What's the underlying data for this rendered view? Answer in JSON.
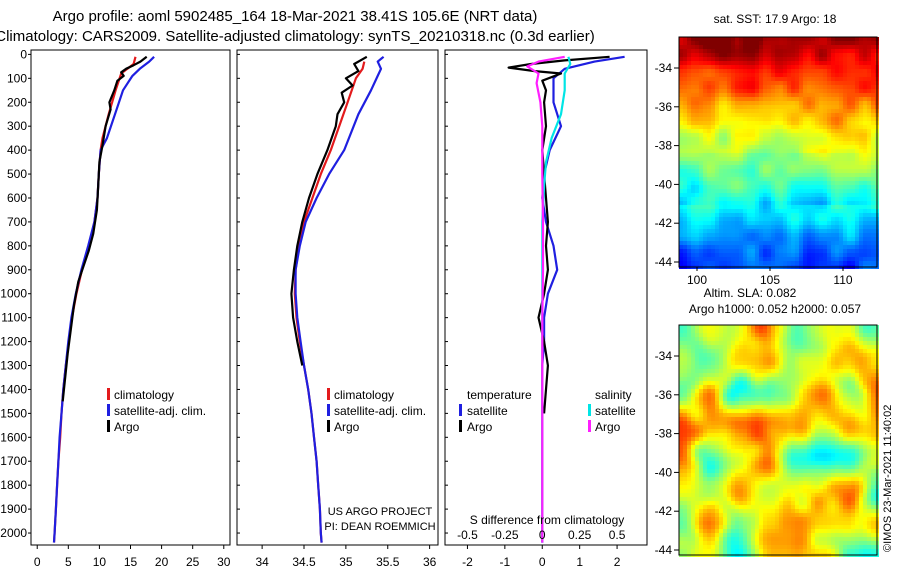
{
  "header": {
    "line1": "Argo profile: aoml 5902485_164 18-Mar-2021 38.41S 105.6E (NRT data)",
    "line2": "Climatology: CARS2009. Satellite-adjusted climatology: synTS_20210318.nc (0.3d earlier)"
  },
  "colors": {
    "climatology": "#e31a1c",
    "satellite": "#1f1fe0",
    "argo": "#000000",
    "sat_salinity": "#00e5e5",
    "argo_salinity": "#ff1fff"
  },
  "chart_data": [
    {
      "type": "line",
      "name": "temperature-profile",
      "xlim": [
        -1,
        31
      ],
      "ylim": [
        2050,
        -10
      ],
      "xticks": [
        0,
        5,
        10,
        15,
        20,
        25,
        30
      ],
      "yticks": [
        0,
        100,
        200,
        300,
        400,
        500,
        600,
        700,
        800,
        900,
        1000,
        1100,
        1200,
        1300,
        1400,
        1500,
        1600,
        1700,
        1800,
        1900,
        2000
      ],
      "legend": [
        "climatology",
        "satellite-adj. clim.",
        "Argo"
      ],
      "series": [
        {
          "name": "climatology",
          "color": "#e31a1c",
          "points": [
            [
              15.8,
              10
            ],
            [
              15.5,
              40
            ],
            [
              13.5,
              80
            ],
            [
              12.6,
              150
            ],
            [
              11.5,
              250
            ],
            [
              10.5,
              350
            ],
            [
              10.2,
              400
            ],
            [
              9.9,
              500
            ],
            [
              9.7,
              600
            ],
            [
              9.2,
              700
            ],
            [
              8.3,
              800
            ],
            [
              7.2,
              900
            ],
            [
              6.3,
              1000
            ],
            [
              5.6,
              1100
            ],
            [
              5.1,
              1200
            ],
            [
              4.6,
              1300
            ],
            [
              4.2,
              1400
            ],
            [
              3.9,
              1500
            ],
            [
              3.7,
              1600
            ],
            [
              3.4,
              1700
            ],
            [
              3.2,
              1800
            ],
            [
              3.0,
              1900
            ],
            [
              2.8,
              2000
            ],
            [
              2.7,
              2040
            ]
          ]
        },
        {
          "name": "satellite-adj. clim.",
          "color": "#1f1fe0",
          "points": [
            [
              18.8,
              10
            ],
            [
              18.0,
              30
            ],
            [
              16.5,
              60
            ],
            [
              15.3,
              90
            ],
            [
              13.8,
              150
            ],
            [
              12.5,
              250
            ],
            [
              11.2,
              350
            ],
            [
              10.2,
              400
            ],
            [
              9.9,
              500
            ],
            [
              9.7,
              600
            ],
            [
              9.2,
              700
            ],
            [
              8.2,
              800
            ],
            [
              7.1,
              900
            ],
            [
              6.2,
              1000
            ],
            [
              5.5,
              1100
            ],
            [
              5.0,
              1200
            ],
            [
              4.6,
              1300
            ],
            [
              4.2,
              1400
            ],
            [
              3.9,
              1500
            ],
            [
              3.6,
              1600
            ],
            [
              3.4,
              1700
            ],
            [
              3.2,
              1800
            ],
            [
              3.0,
              1900
            ],
            [
              2.8,
              2000
            ],
            [
              2.7,
              2040
            ]
          ]
        },
        {
          "name": "Argo",
          "color": "#000000",
          "points": [
            [
              17.6,
              10
            ],
            [
              16.6,
              30
            ],
            [
              15.5,
              45
            ],
            [
              14.3,
              60
            ],
            [
              13.5,
              75
            ],
            [
              13.9,
              90
            ],
            [
              12.9,
              110
            ],
            [
              12.4,
              150
            ],
            [
              11.6,
              200
            ],
            [
              11.8,
              230
            ],
            [
              11.0,
              300
            ],
            [
              10.5,
              380
            ],
            [
              10.0,
              450
            ],
            [
              9.8,
              550
            ],
            [
              9.6,
              650
            ],
            [
              9.0,
              750
            ],
            [
              8.3,
              820
            ],
            [
              7.5,
              880
            ],
            [
              6.6,
              950
            ],
            [
              5.9,
              1050
            ],
            [
              5.4,
              1150
            ],
            [
              4.9,
              1250
            ],
            [
              4.5,
              1350
            ],
            [
              4.1,
              1450
            ]
          ]
        }
      ]
    },
    {
      "type": "line",
      "name": "salinity-profile",
      "xlim": [
        33.7,
        36.1
      ],
      "ylim": [
        2050,
        -10
      ],
      "xticks": [
        34,
        34.5,
        35,
        35.5,
        36
      ],
      "legend": [
        "climatology",
        "satellite-adj. clim.",
        "Argo"
      ],
      "series": [
        {
          "name": "climatology",
          "color": "#e31a1c",
          "points": [
            [
              35.22,
              30
            ],
            [
              35.2,
              60
            ],
            [
              35.12,
              100
            ],
            [
              35.02,
              200
            ],
            [
              34.92,
              300
            ],
            [
              34.82,
              400
            ],
            [
              34.7,
              500
            ],
            [
              34.6,
              600
            ],
            [
              34.5,
              700
            ],
            [
              34.44,
              800
            ],
            [
              34.4,
              900
            ],
            [
              34.39,
              1000
            ],
            [
              34.41,
              1100
            ],
            [
              34.45,
              1200
            ],
            [
              34.5,
              1300
            ],
            [
              34.55,
              1400
            ],
            [
              34.59,
              1500
            ],
            [
              34.62,
              1600
            ],
            [
              34.65,
              1700
            ],
            [
              34.67,
              1800
            ],
            [
              34.69,
              1900
            ],
            [
              34.7,
              2000
            ],
            [
              34.71,
              2040
            ]
          ]
        },
        {
          "name": "satellite-adj. clim.",
          "color": "#1f1fe0",
          "points": [
            [
              35.45,
              10
            ],
            [
              35.38,
              30
            ],
            [
              35.42,
              60
            ],
            [
              35.38,
              90
            ],
            [
              35.3,
              150
            ],
            [
              35.15,
              250
            ],
            [
              34.98,
              400
            ],
            [
              34.8,
              500
            ],
            [
              34.65,
              600
            ],
            [
              34.52,
              700
            ],
            [
              34.45,
              800
            ],
            [
              34.4,
              900
            ],
            [
              34.4,
              1000
            ],
            [
              34.42,
              1100
            ],
            [
              34.46,
              1200
            ],
            [
              34.5,
              1300
            ],
            [
              34.55,
              1400
            ],
            [
              34.59,
              1500
            ],
            [
              34.62,
              1600
            ],
            [
              34.65,
              1700
            ],
            [
              34.67,
              1800
            ],
            [
              34.69,
              1900
            ],
            [
              34.7,
              2000
            ],
            [
              34.71,
              2040
            ]
          ]
        },
        {
          "name": "Argo",
          "color": "#000000",
          "points": [
            [
              35.25,
              10
            ],
            [
              35.1,
              40
            ],
            [
              35.15,
              70
            ],
            [
              35.0,
              100
            ],
            [
              35.08,
              130
            ],
            [
              34.95,
              160
            ],
            [
              34.98,
              200
            ],
            [
              34.9,
              250
            ],
            [
              34.88,
              300
            ],
            [
              34.78,
              400
            ],
            [
              34.66,
              500
            ],
            [
              34.56,
              600
            ],
            [
              34.48,
              700
            ],
            [
              34.42,
              800
            ],
            [
              34.38,
              900
            ],
            [
              34.35,
              1000
            ],
            [
              34.37,
              1100
            ],
            [
              34.42,
              1200
            ],
            [
              34.48,
              1300
            ]
          ]
        }
      ]
    },
    {
      "type": "line",
      "name": "difference-from-climatology",
      "xlim": [
        -2.6,
        2.8
      ],
      "ylim": [
        2050,
        -10
      ],
      "xticks": [
        -2,
        -1,
        0,
        1,
        2
      ],
      "xticks_secondary": [
        -0.5,
        -0.25,
        0,
        0.25,
        0.5
      ],
      "xlabel": "S difference from climatology",
      "legend_titles": [
        "temperature",
        "salinity"
      ],
      "legend": [
        "satellite",
        "Argo",
        "satellite",
        "Argo"
      ],
      "series": [
        {
          "name": "temperature satellite",
          "color": "#1f1fe0",
          "points": [
            [
              2.2,
              10
            ],
            [
              1.4,
              30
            ],
            [
              0.6,
              60
            ],
            [
              0.3,
              100
            ],
            [
              0.3,
              200
            ],
            [
              0.5,
              300
            ],
            [
              0.2,
              400
            ],
            [
              0.05,
              500
            ],
            [
              0.0,
              600
            ],
            [
              0.1,
              700
            ],
            [
              0.3,
              800
            ],
            [
              0.4,
              900
            ],
            [
              0.15,
              1000
            ],
            [
              0.05,
              1100
            ],
            [
              0.05,
              1200
            ],
            [
              0.0,
              1300
            ],
            [
              0.0,
              1400
            ],
            [
              0.0,
              1500
            ],
            [
              0.0,
              1600
            ],
            [
              0.0,
              1700
            ],
            [
              0.0,
              1800
            ],
            [
              0.0,
              1900
            ],
            [
              0.0,
              2000
            ],
            [
              0.0,
              2040
            ]
          ]
        },
        {
          "name": "temperature Argo",
          "color": "#000000",
          "points": [
            [
              1.8,
              10
            ],
            [
              0.6,
              25
            ],
            [
              -0.3,
              40
            ],
            [
              -0.9,
              55
            ],
            [
              -0.2,
              70
            ],
            [
              0.5,
              80
            ],
            [
              0.0,
              110
            ],
            [
              0.1,
              150
            ],
            [
              0.05,
              200
            ],
            [
              0.1,
              300
            ],
            [
              0.0,
              400
            ],
            [
              0.05,
              500
            ],
            [
              0.1,
              600
            ],
            [
              0.15,
              700
            ],
            [
              0.1,
              800
            ],
            [
              0.15,
              900
            ],
            [
              0.05,
              1000
            ],
            [
              -0.1,
              1100
            ],
            [
              0.05,
              1200
            ],
            [
              0.15,
              1300
            ],
            [
              0.1,
              1400
            ],
            [
              0.05,
              1500
            ]
          ]
        },
        {
          "name": "salinity satellite",
          "color": "#00e5e5",
          "points": [
            [
              0.7,
              10
            ],
            [
              0.75,
              40
            ],
            [
              0.6,
              80
            ],
            [
              0.6,
              150
            ],
            [
              0.5,
              250
            ],
            [
              0.25,
              350
            ],
            [
              0.1,
              450
            ],
            [
              0.05,
              550
            ],
            [
              0.0,
              700
            ],
            [
              0.0,
              900
            ],
            [
              0.0,
              1100
            ],
            [
              0.0,
              1300
            ],
            [
              0.0,
              1500
            ],
            [
              0.0,
              1700
            ],
            [
              0.0,
              1900
            ],
            [
              0.0,
              2040
            ]
          ]
        },
        {
          "name": "salinity Argo",
          "color": "#ff1fff",
          "points": [
            [
              0.6,
              10
            ],
            [
              -0.1,
              30
            ],
            [
              -0.4,
              50
            ],
            [
              -0.1,
              80
            ],
            [
              -0.15,
              120
            ],
            [
              -0.05,
              200
            ],
            [
              0.0,
              300
            ],
            [
              0.0,
              500
            ],
            [
              0.02,
              700
            ],
            [
              0.02,
              900
            ],
            [
              0.0,
              1100
            ],
            [
              0.0,
              1300
            ],
            [
              0.0,
              1500
            ],
            [
              0.0,
              1700
            ],
            [
              0.0,
              1900
            ],
            [
              0.0,
              2040
            ]
          ]
        }
      ]
    },
    {
      "type": "heatmap",
      "name": "satellite-sst-map",
      "title": "sat. SST: 17.9 Argo: 18",
      "xticks": [
        100,
        105,
        110
      ],
      "yticks": [
        -34,
        -36,
        -38,
        -40,
        -42,
        -44
      ]
    },
    {
      "type": "heatmap",
      "name": "altimetry-sla-map",
      "title_line1": "Altim. SLA: 0.082",
      "title_line2": "Argo h1000: 0.052 h2000: 0.057",
      "yticks": [
        -34,
        -36,
        -38,
        -40,
        -42,
        -44
      ]
    }
  ],
  "labels": {
    "climatology": "climatology",
    "satellite_adj": "satellite-adj. clim.",
    "argo": "Argo",
    "temperature": "temperature",
    "salinity": "salinity",
    "satellite": "satellite",
    "credit1": "US ARGO PROJECT",
    "credit2": "PI: DEAN ROEMMICH",
    "watermark": "©IMOS 23-Mar-2021 11:40:02"
  }
}
